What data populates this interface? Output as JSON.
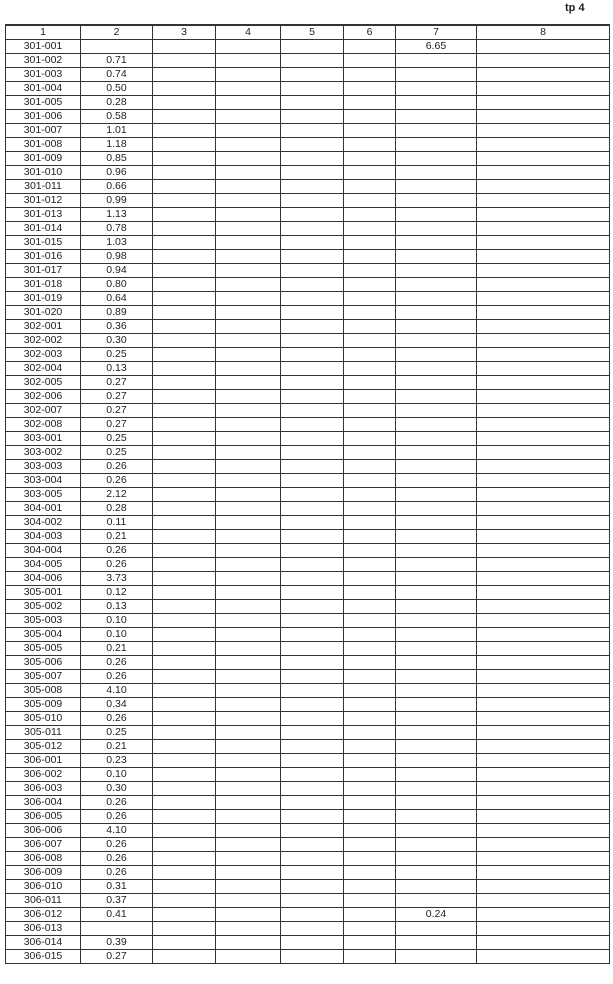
{
  "page_tag": "tp 4",
  "headers": [
    "1",
    "2",
    "3",
    "4",
    "5",
    "6",
    "7",
    "8"
  ],
  "rows": [
    [
      "301-001",
      "",
      "",
      "",
      "",
      "",
      "6.65",
      ""
    ],
    [
      "301-002",
      "0.71",
      "",
      "",
      "",
      "",
      "",
      ""
    ],
    [
      "301-003",
      "0.74",
      "",
      "",
      "",
      "",
      "",
      ""
    ],
    [
      "301-004",
      "0.50",
      "",
      "",
      "",
      "",
      "",
      ""
    ],
    [
      "301-005",
      "0.28",
      "",
      "",
      "",
      "",
      "",
      ""
    ],
    [
      "301-006",
      "0.58",
      "",
      "",
      "",
      "",
      "",
      ""
    ],
    [
      "301-007",
      "1.01",
      "",
      "",
      "",
      "",
      "",
      ""
    ],
    [
      "301-008",
      "1.18",
      "",
      "",
      "",
      "",
      "",
      ""
    ],
    [
      "301-009",
      "0.85",
      "",
      "",
      "",
      "",
      "",
      ""
    ],
    [
      "301-010",
      "0.96",
      "",
      "",
      "",
      "",
      "",
      ""
    ],
    [
      "301-011",
      "0.66",
      "",
      "",
      "",
      "",
      "",
      ""
    ],
    [
      "301-012",
      "0.99",
      "",
      "",
      "",
      "",
      "",
      ""
    ],
    [
      "301-013",
      "1.13",
      "",
      "",
      "",
      "",
      "",
      ""
    ],
    [
      "301-014",
      "0.78",
      "",
      "",
      "",
      "",
      "",
      ""
    ],
    [
      "301-015",
      "1.03",
      "",
      "",
      "",
      "",
      "",
      ""
    ],
    [
      "301-016",
      "0.98",
      "",
      "",
      "",
      "",
      "",
      ""
    ],
    [
      "301-017",
      "0.94",
      "",
      "",
      "",
      "",
      "",
      ""
    ],
    [
      "301-018",
      "0.80",
      "",
      "",
      "",
      "",
      "",
      ""
    ],
    [
      "301-019",
      "0.64",
      "",
      "",
      "",
      "",
      "",
      ""
    ],
    [
      "301-020",
      "0.89",
      "",
      "",
      "",
      "",
      "",
      ""
    ],
    [
      "302-001",
      "0.36",
      "",
      "",
      "",
      "",
      "",
      ""
    ],
    [
      "302-002",
      "0.30",
      "",
      "",
      "",
      "",
      "",
      ""
    ],
    [
      "302-003",
      "0.25",
      "",
      "",
      "",
      "",
      "",
      ""
    ],
    [
      "302-004",
      "0.13",
      "",
      "",
      "",
      "",
      "",
      ""
    ],
    [
      "302-005",
      "0.27",
      "",
      "",
      "",
      "",
      "",
      ""
    ],
    [
      "302-006",
      "0.27",
      "",
      "",
      "",
      "",
      "",
      ""
    ],
    [
      "302-007",
      "0.27",
      "",
      "",
      "",
      "",
      "",
      ""
    ],
    [
      "302-008",
      "0.27",
      "",
      "",
      "",
      "",
      "",
      ""
    ],
    [
      "303-001",
      "0.25",
      "",
      "",
      "",
      "",
      "",
      ""
    ],
    [
      "303-002",
      "0.25",
      "",
      "",
      "",
      "",
      "",
      ""
    ],
    [
      "303-003",
      "0.26",
      "",
      "",
      "",
      "",
      "",
      ""
    ],
    [
      "303-004",
      "0.26",
      "",
      "",
      "",
      "",
      "",
      ""
    ],
    [
      "303-005",
      "2.12",
      "",
      "",
      "",
      "",
      "",
      ""
    ],
    [
      "304-001",
      "0.28",
      "",
      "",
      "",
      "",
      "",
      ""
    ],
    [
      "304-002",
      "0.11",
      "",
      "",
      "",
      "",
      "",
      ""
    ],
    [
      "304-003",
      "0.21",
      "",
      "",
      "",
      "",
      "",
      ""
    ],
    [
      "304-004",
      "0.26",
      "",
      "",
      "",
      "",
      "",
      ""
    ],
    [
      "304-005",
      "0.26",
      "",
      "",
      "",
      "",
      "",
      ""
    ],
    [
      "304-006",
      "3.73",
      "",
      "",
      "",
      "",
      "",
      ""
    ],
    [
      "305-001",
      "0.12",
      "",
      "",
      "",
      "",
      "",
      ""
    ],
    [
      "305-002",
      "0.13",
      "",
      "",
      "",
      "",
      "",
      ""
    ],
    [
      "305-003",
      "0.10",
      "",
      "",
      "",
      "",
      "",
      ""
    ],
    [
      "305-004",
      "0.10",
      "",
      "",
      "",
      "",
      "",
      ""
    ],
    [
      "305-005",
      "0.21",
      "",
      "",
      "",
      "",
      "",
      ""
    ],
    [
      "305-006",
      "0.26",
      "",
      "",
      "",
      "",
      "",
      ""
    ],
    [
      "305-007",
      "0.26",
      "",
      "",
      "",
      "",
      "",
      ""
    ],
    [
      "305-008",
      "4.10",
      "",
      "",
      "",
      "",
      "",
      ""
    ],
    [
      "305-009",
      "0.34",
      "",
      "",
      "",
      "",
      "",
      ""
    ],
    [
      "305-010",
      "0.26",
      "",
      "",
      "",
      "",
      "",
      ""
    ],
    [
      "305-011",
      "0.25",
      "",
      "",
      "",
      "",
      "",
      ""
    ],
    [
      "305-012",
      "0.21",
      "",
      "",
      "",
      "",
      "",
      ""
    ],
    [
      "306-001",
      "0.23",
      "",
      "",
      "",
      "",
      "",
      ""
    ],
    [
      "306-002",
      "0.10",
      "",
      "",
      "",
      "",
      "",
      ""
    ],
    [
      "306-003",
      "0.30",
      "",
      "",
      "",
      "",
      "",
      ""
    ],
    [
      "306-004",
      "0.26",
      "",
      "",
      "",
      "",
      "",
      ""
    ],
    [
      "306-005",
      "0.26",
      "",
      "",
      "",
      "",
      "",
      ""
    ],
    [
      "306-006",
      "4.10",
      "",
      "",
      "",
      "",
      "",
      ""
    ],
    [
      "306-007",
      "0.26",
      "",
      "",
      "",
      "",
      "",
      ""
    ],
    [
      "306-008",
      "0.26",
      "",
      "",
      "",
      "",
      "",
      ""
    ],
    [
      "306-009",
      "0.26",
      "",
      "",
      "",
      "",
      "",
      ""
    ],
    [
      "306-010",
      "0.31",
      "",
      "",
      "",
      "",
      "",
      ""
    ],
    [
      "306-011",
      "0.37",
      "",
      "",
      "",
      "",
      "",
      ""
    ],
    [
      "306-012",
      "0.41",
      "",
      "",
      "",
      "",
      "0.24",
      ""
    ],
    [
      "306-013",
      "",
      "",
      "",
      "",
      "",
      "",
      ""
    ],
    [
      "306-014",
      "0.39",
      "",
      "",
      "",
      "",
      "",
      ""
    ],
    [
      "306-015",
      "0.27",
      "",
      "",
      "",
      "",
      "",
      ""
    ]
  ]
}
